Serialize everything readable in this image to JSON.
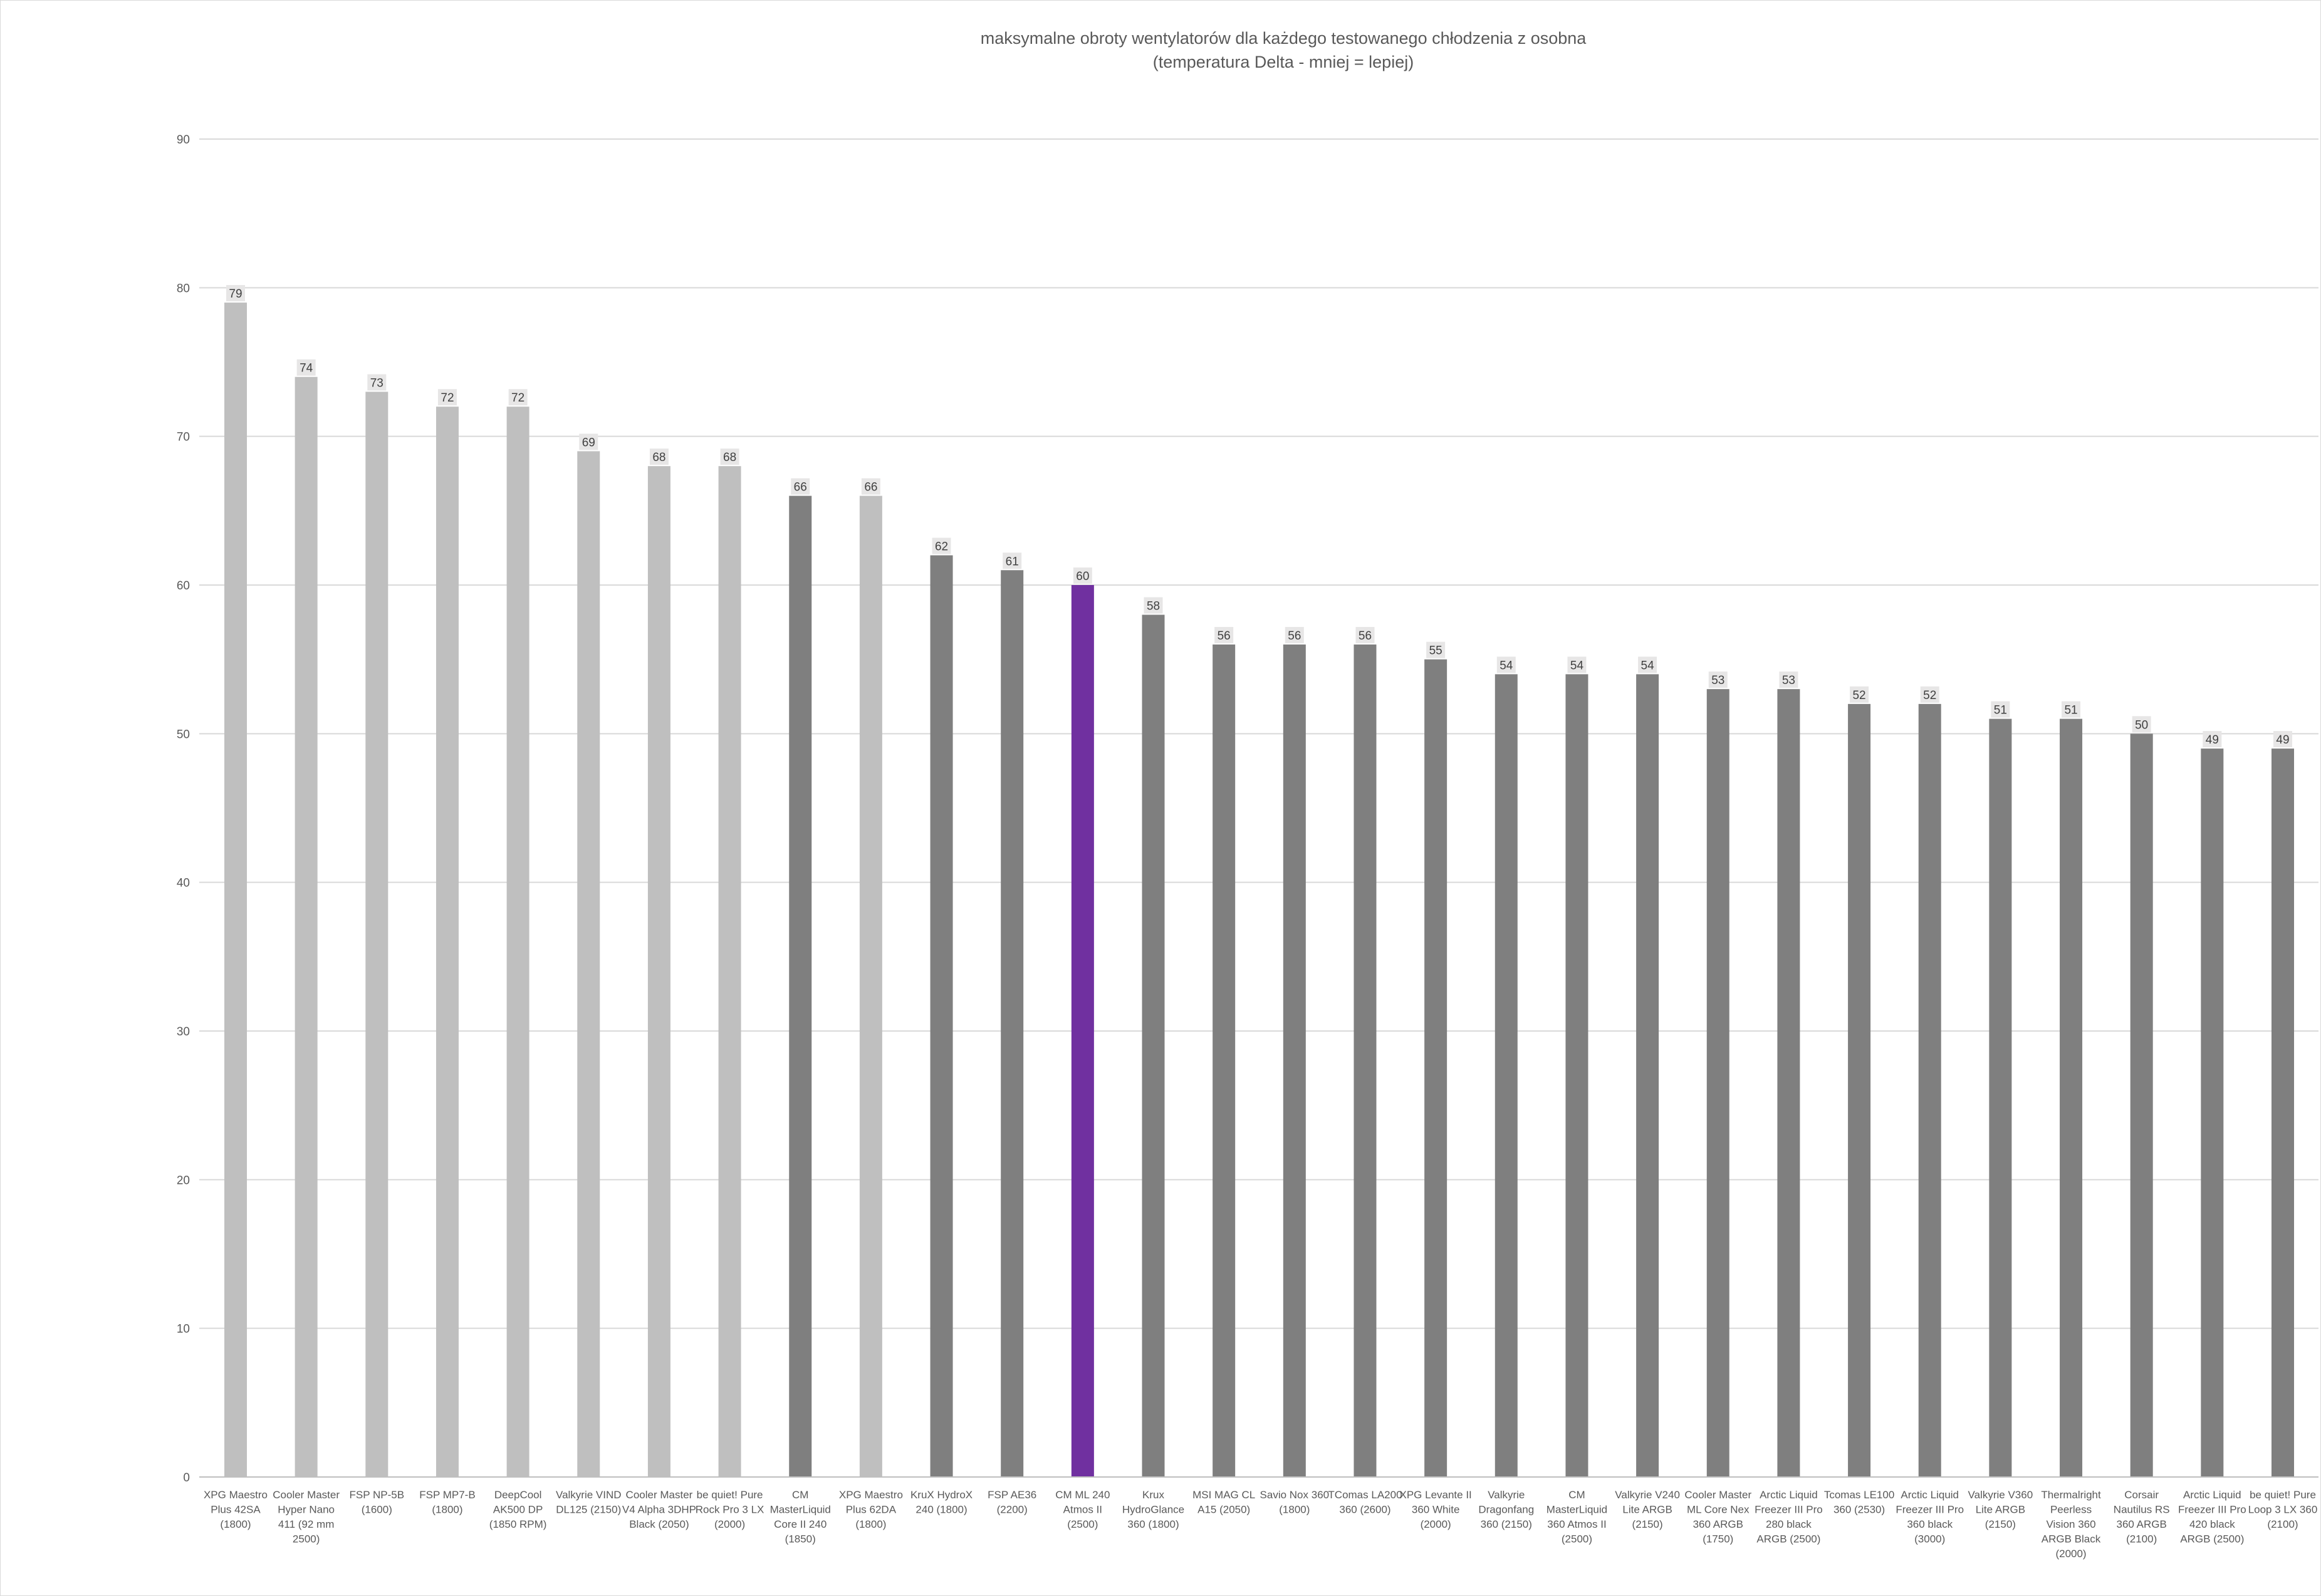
{
  "chart_data": {
    "type": "bar",
    "title": "maksymalne obroty wentylatorów dla każdego testowanego chłodzenia z osobna",
    "subtitle": "(temperatura Delta - mniej = lepiej)",
    "xlabel": "",
    "ylabel": "",
    "ylim": [
      0,
      90
    ],
    "yticks": [
      0,
      10,
      20,
      30,
      40,
      50,
      60,
      70,
      80,
      90
    ],
    "grid": true,
    "categories": [
      [
        "XPG Maestro",
        "Plus 42SA",
        "(1800)"
      ],
      [
        "Cooler Master",
        "Hyper Nano",
        "411 (92 mm",
        "2500)"
      ],
      [
        "FSP NP-5B",
        "(1600)"
      ],
      [
        "FSP MP7-B",
        "(1800)"
      ],
      [
        "DeepCool",
        "AK500 DP",
        "(1850 RPM)"
      ],
      [
        "Valkyrie VIND",
        "DL125 (2150)"
      ],
      [
        "Cooler Master",
        "V4 Alpha 3DHP",
        "Black (2050)"
      ],
      [
        "be quiet! Pure",
        "Rock Pro 3 LX",
        "(2000)"
      ],
      [
        "CM",
        "MasterLiquid",
        "Core II 240",
        "(1850)"
      ],
      [
        "XPG Maestro",
        "Plus 62DA",
        "(1800)"
      ],
      [
        "KruX HydroX",
        "240 (1800)"
      ],
      [
        "FSP AE36",
        "(2200)"
      ],
      [
        "CM ML 240",
        "Atmos II",
        "(2500)"
      ],
      [
        "Krux",
        "HydroGlance",
        "360 (1800)"
      ],
      [
        "MSI MAG CL",
        "A15 (2050)"
      ],
      [
        "Savio Nox 360",
        "(1800)"
      ],
      [
        "TComas LA200",
        "360 (2600)"
      ],
      [
        "XPG Levante II",
        "360 White",
        "(2000)"
      ],
      [
        "Valkyrie",
        "Dragonfang",
        "360 (2150)"
      ],
      [
        "CM",
        "MasterLiquid",
        "360 Atmos II",
        "(2500)"
      ],
      [
        "Valkyrie V240",
        "Lite ARGB",
        "(2150)"
      ],
      [
        "Cooler Master",
        "ML Core Nex",
        "360 ARGB",
        "(1750)"
      ],
      [
        "Arctic Liquid",
        "Freezer III Pro",
        "280 black",
        "ARGB (2500)"
      ],
      [
        "Tcomas LE100",
        "360 (2530)"
      ],
      [
        "Arctic Liquid",
        "Freezer III Pro",
        "360 black",
        "(3000)"
      ],
      [
        "Valkyrie V360",
        "Lite ARGB",
        "(2150)"
      ],
      [
        "Thermalright",
        "Peerless",
        "Vision 360",
        "ARGB Black",
        "(2000)"
      ],
      [
        "Corsair",
        "Nautilus RS",
        "360 ARGB",
        "(2100)"
      ],
      [
        "Arctic Liquid",
        "Freezer III Pro",
        "420 black",
        "ARGB (2500)"
      ],
      [
        "be quiet! Pure",
        "Loop 3 LX 360",
        "(2100)"
      ]
    ],
    "values": [
      79,
      74,
      73,
      72,
      72,
      69,
      68,
      68,
      66,
      66,
      62,
      61,
      60,
      58,
      56,
      56,
      56,
      55,
      54,
      54,
      54,
      53,
      53,
      52,
      52,
      51,
      51,
      50,
      49,
      49
    ],
    "bar_colors": [
      "#bfbfbf",
      "#bfbfbf",
      "#bfbfbf",
      "#bfbfbf",
      "#bfbfbf",
      "#bfbfbf",
      "#bfbfbf",
      "#bfbfbf",
      "#7f7f7f",
      "#bfbfbf",
      "#7f7f7f",
      "#7f7f7f",
      "#7030a0",
      "#7f7f7f",
      "#7f7f7f",
      "#7f7f7f",
      "#7f7f7f",
      "#7f7f7f",
      "#7f7f7f",
      "#7f7f7f",
      "#7f7f7f",
      "#7f7f7f",
      "#7f7f7f",
      "#7f7f7f",
      "#7f7f7f",
      "#7f7f7f",
      "#7f7f7f",
      "#7f7f7f",
      "#7f7f7f",
      "#7f7f7f"
    ],
    "colors": {
      "gridline": "#d9d9d9",
      "label_box": "#e7e6e6",
      "text": "#595959"
    }
  }
}
